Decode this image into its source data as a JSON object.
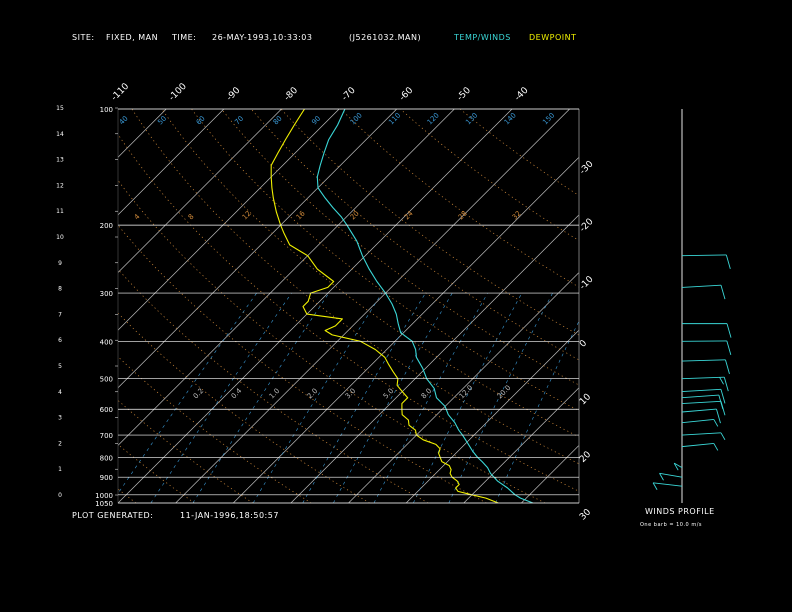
{
  "header": {
    "site_label": "SITE:",
    "site_value": "FIXED, MAN",
    "time_label": "TIME:",
    "time_value": "26-MAY-1993,10:33:03",
    "file": "(J5261032.MAN)",
    "temp_legend": "TEMP/WINDS",
    "dew_legend": "DEWPOINT"
  },
  "footer": {
    "generated_label": "PLOT GENERATED:",
    "generated_value": "11-JAN-1996,18:50:57",
    "winds_profile_label": "WINDS PROFILE",
    "barb_note": "One barb = 10.0 m/s"
  },
  "colors": {
    "background": "#000000",
    "temperature": "#3ad7d7",
    "dewpoint": "#f0f000",
    "isotherm": "#bdbdbd",
    "dry_adiabat": "#d08a3a",
    "moist_adiabat": "#c07030",
    "mixing_ratio": "#3a9ad7",
    "isobar": "#ffffff",
    "wind_barb": "#3ad7d7"
  },
  "chart_data": {
    "type": "line",
    "title": "",
    "pressure_levels_hpa": [
      "100",
      "200",
      "300",
      "400",
      "500",
      "600",
      "700",
      "800",
      "900",
      "1000",
      "1050"
    ],
    "height_ticks_km": [
      "0",
      "1",
      "2",
      "3",
      "4",
      "5",
      "6",
      "7",
      "8",
      "9",
      "10",
      "11",
      "12",
      "13",
      "14",
      "15"
    ],
    "temp_ticks_c": [
      "-110",
      "-100",
      "-90",
      "-80",
      "-70",
      "-60",
      "-50",
      "-40",
      "-30",
      "-20",
      "-10",
      "0",
      "10",
      "20",
      "30"
    ],
    "theta_labels": [
      "40",
      "50",
      "60",
      "70",
      "80",
      "90",
      "100",
      "110",
      "120",
      "130",
      "140",
      "150"
    ],
    "theta_e_labels": [
      "4",
      "8",
      "12",
      "16",
      "20",
      "24",
      "28",
      "32"
    ],
    "mixing_ratio_labels": [
      "0.2",
      "0.4",
      "1.0",
      "2.0",
      "3.0",
      "5.0",
      "8.0",
      "12.0",
      "20.0"
    ],
    "scale": {
      "t_min": -40,
      "t_max": 40,
      "p_min": 100,
      "p_max": 1050,
      "skew": "45deg"
    },
    "series": [
      {
        "name": "TEMP/WINDS",
        "points": [
          [
            1050,
            32
          ],
          [
            1020,
            29
          ],
          [
            1000,
            27.5
          ],
          [
            960,
            25
          ],
          [
            920,
            22
          ],
          [
            880,
            19.5
          ],
          [
            850,
            18
          ],
          [
            820,
            16
          ],
          [
            800,
            14.5
          ],
          [
            770,
            12.5
          ],
          [
            730,
            10
          ],
          [
            700,
            8
          ],
          [
            680,
            6.5
          ],
          [
            650,
            4.5
          ],
          [
            620,
            2
          ],
          [
            590,
            0
          ],
          [
            560,
            -3
          ],
          [
            530,
            -5
          ],
          [
            500,
            -8
          ],
          [
            470,
            -10.5
          ],
          [
            440,
            -13.5
          ],
          [
            420,
            -15
          ],
          [
            400,
            -17
          ],
          [
            380,
            -20.5
          ],
          [
            360,
            -22.5
          ],
          [
            340,
            -24.5
          ],
          [
            320,
            -27
          ],
          [
            300,
            -30
          ],
          [
            280,
            -33.5
          ],
          [
            260,
            -37
          ],
          [
            240,
            -40.5
          ],
          [
            220,
            -44
          ],
          [
            200,
            -48.5
          ],
          [
            190,
            -51
          ],
          [
            180,
            -54
          ],
          [
            170,
            -57
          ],
          [
            160,
            -60
          ],
          [
            150,
            -62
          ],
          [
            140,
            -63.5
          ],
          [
            130,
            -65
          ],
          [
            120,
            -66.5
          ],
          [
            110,
            -67.5
          ],
          [
            100,
            -69
          ]
        ]
      },
      {
        "name": "DEWPOINT",
        "points": [
          [
            1050,
            26
          ],
          [
            1020,
            23
          ],
          [
            1000,
            20
          ],
          [
            980,
            17
          ],
          [
            960,
            16
          ],
          [
            940,
            16
          ],
          [
            920,
            15
          ],
          [
            900,
            13.5
          ],
          [
            880,
            12.5
          ],
          [
            860,
            12
          ],
          [
            840,
            11
          ],
          [
            820,
            9
          ],
          [
            800,
            8
          ],
          [
            780,
            7
          ],
          [
            760,
            6.5
          ],
          [
            740,
            5
          ],
          [
            720,
            2
          ],
          [
            700,
            0
          ],
          [
            680,
            -1
          ],
          [
            660,
            -3
          ],
          [
            640,
            -4
          ],
          [
            620,
            -6
          ],
          [
            600,
            -7
          ],
          [
            580,
            -8
          ],
          [
            560,
            -8
          ],
          [
            540,
            -10
          ],
          [
            520,
            -12
          ],
          [
            500,
            -13
          ],
          [
            480,
            -15
          ],
          [
            460,
            -17
          ],
          [
            440,
            -19
          ],
          [
            420,
            -22
          ],
          [
            400,
            -26
          ],
          [
            385,
            -32
          ],
          [
            375,
            -34
          ],
          [
            365,
            -33
          ],
          [
            350,
            -33
          ],
          [
            340,
            -40
          ],
          [
            325,
            -42
          ],
          [
            315,
            -42
          ],
          [
            300,
            -43
          ],
          [
            290,
            -41
          ],
          [
            280,
            -41
          ],
          [
            260,
            -46
          ],
          [
            240,
            -50
          ],
          [
            225,
            -55
          ],
          [
            210,
            -58
          ],
          [
            200,
            -60
          ],
          [
            185,
            -63
          ],
          [
            170,
            -66
          ],
          [
            160,
            -68
          ],
          [
            150,
            -70
          ],
          [
            140,
            -72
          ],
          [
            130,
            -73
          ],
          [
            120,
            -74
          ],
          [
            110,
            -75
          ],
          [
            100,
            -76
          ]
        ]
      }
    ],
    "winds": [
      {
        "p": 240,
        "ws": 10,
        "dir": 80
      },
      {
        "p": 290,
        "ws": 12,
        "dir": 60
      },
      {
        "p": 360,
        "ws": 10,
        "dir": 90
      },
      {
        "p": 400,
        "ws": 12,
        "dir": 85
      },
      {
        "p": 450,
        "ws": 14,
        "dir": 75
      },
      {
        "p": 500,
        "ws": 15,
        "dir": 70
      },
      {
        "p": 540,
        "ws": 13,
        "dir": 60
      },
      {
        "p": 560,
        "ws": 12,
        "dir": 55
      },
      {
        "p": 580,
        "ws": 11,
        "dir": 60
      },
      {
        "p": 610,
        "ws": 10,
        "dir": 50
      },
      {
        "p": 650,
        "ws": 9,
        "dir": 45
      },
      {
        "p": 700,
        "ws": 8,
        "dir": 60
      },
      {
        "p": 750,
        "ws": 6,
        "dir": 45
      },
      {
        "p": 850,
        "ws": 7,
        "dir": 350
      },
      {
        "p": 900,
        "ws": 8,
        "dir": 330
      },
      {
        "p": 950,
        "ws": 9,
        "dir": 320
      }
    ]
  }
}
